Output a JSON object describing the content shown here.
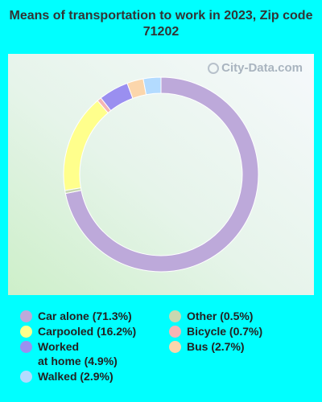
{
  "title": "Means of transportation to work in 2023, Zip code 71202",
  "watermark": "City-Data.com",
  "chart_data": {
    "type": "pie",
    "donut": true,
    "slices": [
      {
        "label": "Car alone (71.3%)",
        "value": 71.3,
        "color": "#bda9da"
      },
      {
        "label": "Other (0.5%)",
        "value": 0.5,
        "color": "#c8d8b0"
      },
      {
        "label": "Carpooled (16.2%)",
        "value": 16.2,
        "color": "#ffff8c"
      },
      {
        "label": "Bicycle (0.7%)",
        "value": 0.7,
        "color": "#f5b4b4"
      },
      {
        "label": "Worked at home (4.9%)",
        "value": 4.9,
        "color": "#9a8ff0"
      },
      {
        "label": "Bus (2.7%)",
        "value": 2.7,
        "color": "#fbd6ac"
      },
      {
        "label": "Walked (2.9%)",
        "value": 2.9,
        "color": "#b3dbff"
      }
    ],
    "legend": [
      {
        "label": "Car alone (71.3%)",
        "color": "#bda9da"
      },
      {
        "label": "Carpooled (16.2%)",
        "color": "#ffff8c"
      },
      {
        "label": "Worked\nat home (4.9%)",
        "color": "#9a8ff0"
      },
      {
        "label": "Walked (2.9%)",
        "color": "#b3dbff"
      },
      {
        "label": "Other (0.5%)",
        "color": "#c8d8b0"
      },
      {
        "label": "Bicycle (0.7%)",
        "color": "#f5b4b4"
      },
      {
        "label": "Bus (2.7%)",
        "color": "#fbd6ac"
      }
    ],
    "legend_placement": "bottom"
  }
}
